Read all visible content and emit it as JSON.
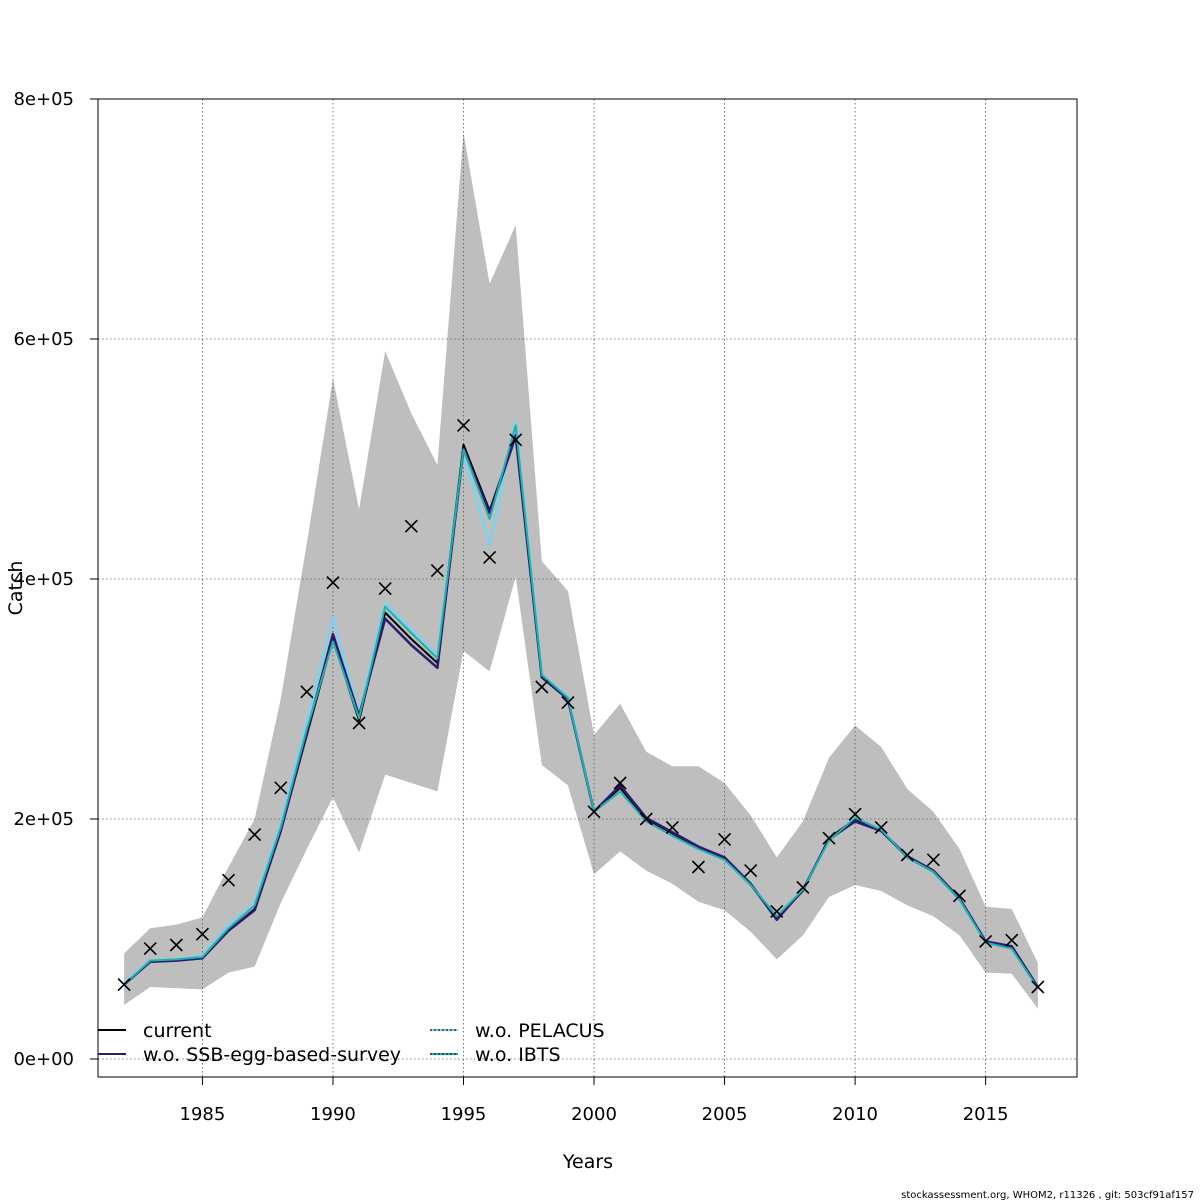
{
  "chart_data": {
    "type": "line",
    "title": "",
    "xlabel": "Years",
    "ylabel": "Catch",
    "xlim": [
      1981,
      2018.5
    ],
    "ylim": [
      -15000,
      800000
    ],
    "x_ticks": [
      1985,
      1990,
      1995,
      2000,
      2005,
      2010,
      2015
    ],
    "x_tick_labels": [
      "1985",
      "1990",
      "1995",
      "2000",
      "2005",
      "2010",
      "2015"
    ],
    "y_ticks": [
      0,
      200000,
      400000,
      600000,
      800000
    ],
    "y_tick_labels": [
      "0e+00",
      "2e+05",
      "4e+05",
      "6e+05",
      "8e+05"
    ],
    "grid": true,
    "legend_position": "bottom-left",
    "x": [
      1982,
      1983,
      1984,
      1985,
      1986,
      1987,
      1988,
      1989,
      1990,
      1991,
      1992,
      1993,
      1994,
      1995,
      1996,
      1997,
      1998,
      1999,
      2000,
      2001,
      2002,
      2003,
      2004,
      2005,
      2006,
      2007,
      2008,
      2009,
      2010,
      2011,
      2012,
      2013,
      2014,
      2015,
      2016,
      2017
    ],
    "confidence_band": {
      "color": "#bebebe",
      "lower": [
        45000,
        60000,
        59000,
        58000,
        72000,
        77000,
        130000,
        175000,
        218000,
        172000,
        237000,
        230000,
        223000,
        340000,
        323000,
        402000,
        245000,
        228000,
        154000,
        173000,
        157000,
        146000,
        131000,
        124000,
        106000,
        83000,
        103000,
        135000,
        145000,
        140000,
        128000,
        119000,
        103000,
        72000,
        71000,
        42000
      ],
      "upper": [
        88000,
        109000,
        112000,
        118000,
        160000,
        200000,
        300000,
        430000,
        567000,
        458000,
        590000,
        538000,
        495000,
        772000,
        646000,
        695000,
        415000,
        390000,
        270000,
        296000,
        256000,
        244000,
        244000,
        230000,
        203000,
        168000,
        198000,
        251000,
        278000,
        260000,
        225000,
        206000,
        175000,
        127000,
        125000,
        80000
      ]
    },
    "observations": {
      "marker": "x",
      "color": "#000000",
      "values": [
        62000,
        92000,
        95000,
        104000,
        149000,
        187000,
        226000,
        306000,
        397000,
        280000,
        392000,
        444000,
        407000,
        528000,
        418000,
        516000,
        310000,
        297000,
        206000,
        230000,
        200000,
        193000,
        160000,
        183000,
        157000,
        123000,
        143000,
        184000,
        204000,
        193000,
        170000,
        166000,
        136000,
        98000,
        99000,
        60000
      ]
    },
    "series": [
      {
        "name": "current",
        "color": "#000000",
        "dash": "solid",
        "width": 2,
        "values": [
          62000,
          81000,
          82000,
          84000,
          107000,
          125000,
          190000,
          270000,
          350000,
          282000,
          372000,
          350000,
          330000,
          512000,
          457000,
          520000,
          318000,
          300000,
          206000,
          226000,
          200000,
          188000,
          176000,
          167000,
          145000,
          117000,
          140000,
          184000,
          200000,
          190000,
          168000,
          156000,
          133000,
          98000,
          93000,
          60000
        ]
      },
      {
        "name": "w.o. SSB-egg-based-survey",
        "color": "#2b1a6e",
        "dash": "solid",
        "width": 2.5,
        "values": [
          62000,
          81000,
          82000,
          84000,
          107000,
          124000,
          190000,
          272000,
          354000,
          286000,
          367000,
          345000,
          326000,
          508000,
          455000,
          519000,
          318000,
          300000,
          206000,
          228000,
          201000,
          189000,
          177000,
          168000,
          146000,
          116000,
          141000,
          183000,
          198000,
          190000,
          169000,
          157000,
          134000,
          98000,
          94000,
          60000
        ]
      },
      {
        "name": "w.o. PELACUS",
        "color": "#87ceeb",
        "dash": "solid",
        "width": 3,
        "values": [
          63000,
          82000,
          83000,
          86000,
          111000,
          130000,
          196000,
          280000,
          368000,
          287000,
          380000,
          358000,
          336000,
          505000,
          428000,
          531000,
          320000,
          302000,
          206000,
          225000,
          199000,
          187000,
          175000,
          166000,
          146000,
          118000,
          141000,
          182000,
          200000,
          190000,
          168000,
          156000,
          133000,
          97000,
          93000,
          59000
        ]
      },
      {
        "name": "w.o. IBTS",
        "color": "#20b2aa",
        "dash": "solid",
        "width": 2,
        "values": [
          62000,
          82000,
          83000,
          85000,
          109000,
          128000,
          193000,
          275000,
          348000,
          284000,
          377000,
          355000,
          334000,
          508000,
          450000,
          528000,
          320000,
          301000,
          206000,
          223000,
          198000,
          186000,
          175000,
          166000,
          145000,
          119000,
          141000,
          182000,
          201000,
          191000,
          168000,
          156000,
          133000,
          97000,
          92000,
          59000
        ]
      }
    ],
    "legend": [
      {
        "label": "current",
        "color": "#000000",
        "style": "solid"
      },
      {
        "label": "w.o. SSB-egg-based-survey",
        "color": "#2b1a6e",
        "style": "solid"
      },
      {
        "label": "w.o. PELACUS",
        "color": "#87ceeb",
        "style": "dotted"
      },
      {
        "label": "w.o. IBTS",
        "color": "#20b2aa",
        "style": "dotted"
      }
    ]
  },
  "footer": "stockassessment.org, WHOM2, r11326 , git: 503cf91af157"
}
